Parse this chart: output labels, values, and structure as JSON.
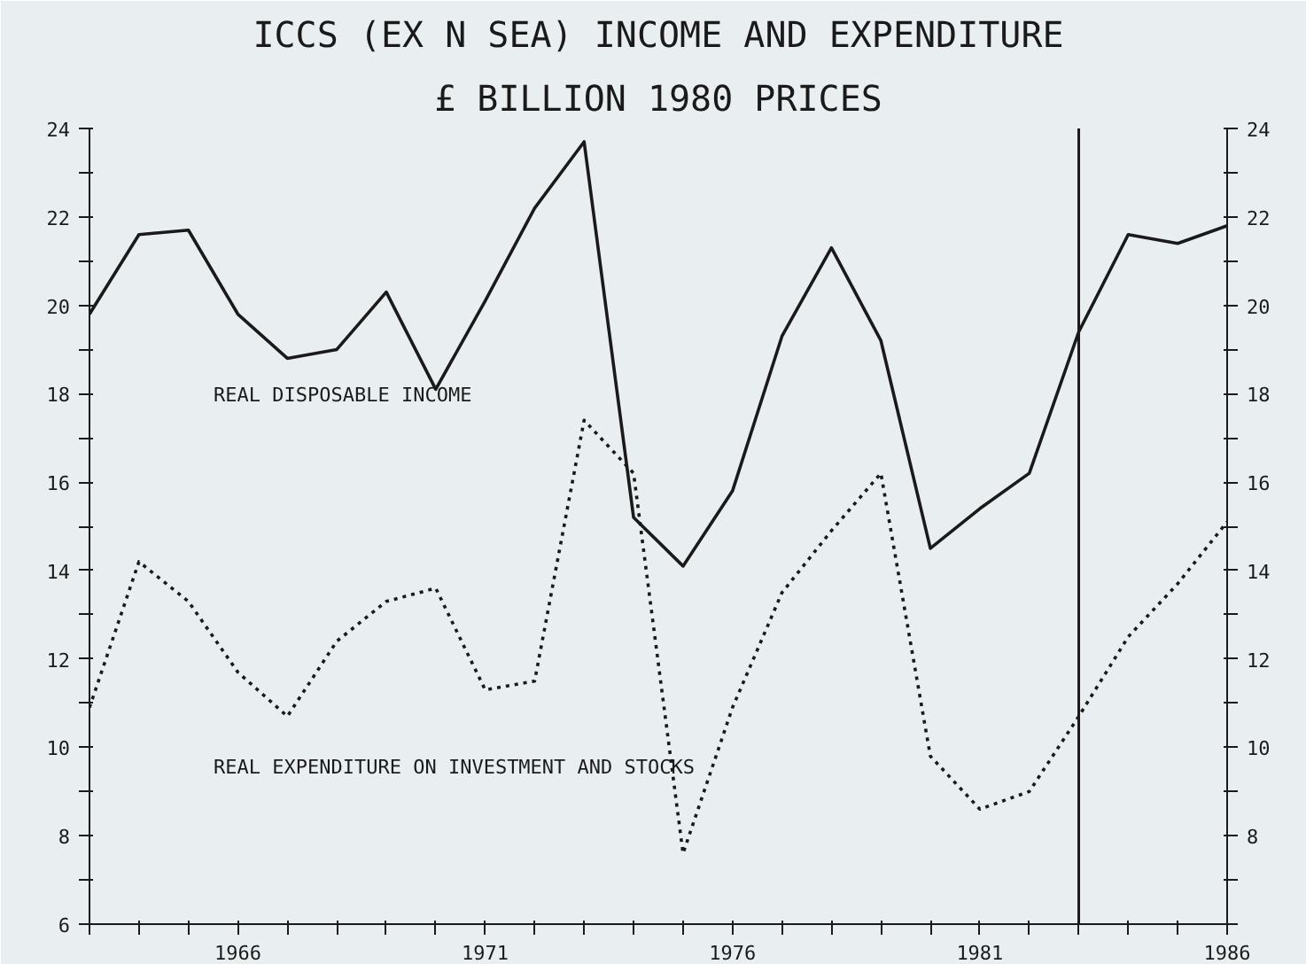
{
  "chart_data": {
    "type": "line",
    "title": "ICCS (EX N SEA) INCOME AND EXPENDITURE",
    "subtitle": "£ BILLION 1980 PRICES",
    "x": [
      1963,
      1964,
      1965,
      1966,
      1967,
      1968,
      1969,
      1970,
      1971,
      1972,
      1973,
      1974,
      1975,
      1976,
      1977,
      1978,
      1979,
      1980,
      1981,
      1982,
      1983,
      1984,
      1985,
      1986
    ],
    "series": [
      {
        "name": "REAL DISPOSABLE INCOME",
        "color": "#1a1a1a",
        "line_style": "solid",
        "values": [
          19.8,
          21.6,
          21.7,
          19.8,
          18.8,
          19.0,
          20.3,
          18.1,
          20.1,
          22.2,
          23.7,
          15.2,
          14.1,
          15.8,
          19.3,
          21.3,
          19.2,
          14.5,
          15.4,
          16.2,
          19.4,
          21.6,
          21.4,
          21.8
        ]
      },
      {
        "name": "REAL EXPENDITURE ON INVESTMENT AND STOCKS",
        "color": "#1a1a1a",
        "line_style": "dotted",
        "values": [
          10.9,
          14.2,
          13.3,
          11.7,
          10.7,
          12.4,
          13.3,
          13.6,
          11.3,
          11.5,
          17.4,
          16.2,
          7.6,
          10.9,
          13.5,
          14.9,
          16.2,
          9.8,
          8.6,
          9.0,
          10.7,
          12.5,
          13.7,
          15.1
        ]
      }
    ],
    "xlim": [
      1963,
      1986
    ],
    "xticks": [
      {
        "value": 1963,
        "label": null
      },
      {
        "value": 1964,
        "label": null
      },
      {
        "value": 1965,
        "label": null
      },
      1966,
      {
        "value": 1967,
        "label": null
      },
      {
        "value": 1968,
        "label": null
      },
      {
        "value": 1969,
        "label": null
      },
      {
        "value": 1970,
        "label": null
      },
      1971,
      {
        "value": 1972,
        "label": null
      },
      {
        "value": 1973,
        "label": null
      },
      {
        "value": 1974,
        "label": null
      },
      {
        "value": 1975,
        "label": null
      },
      1976,
      {
        "value": 1977,
        "label": null
      },
      {
        "value": 1978,
        "label": null
      },
      {
        "value": 1979,
        "label": null
      },
      {
        "value": 1980,
        "label": null
      },
      1981,
      {
        "value": 1982,
        "label": null
      },
      {
        "value": 1983,
        "label": null
      },
      {
        "value": 1984,
        "label": null
      },
      {
        "value": 1985,
        "label": null
      },
      1986
    ],
    "ylim": [
      6,
      24
    ],
    "yticks": [
      6,
      {
        "value": 7,
        "label": null
      },
      8,
      {
        "value": 9,
        "label": null
      },
      10,
      {
        "value": 11,
        "label": null
      },
      12,
      {
        "value": 13,
        "label": null
      },
      14,
      {
        "value": 15,
        "label": null
      },
      16,
      {
        "value": 17,
        "label": null
      },
      18,
      {
        "value": 19,
        "label": null
      },
      20,
      {
        "value": 21,
        "label": null
      },
      22,
      {
        "value": 23,
        "label": null
      },
      24
    ],
    "y2lim": [
      6,
      24
    ],
    "y2ticks": [
      {
        "value": 6,
        "label": null
      },
      {
        "value": 7,
        "label": null
      },
      8,
      {
        "value": 9,
        "label": null
      },
      10,
      {
        "value": 11,
        "label": null
      },
      12,
      {
        "value": 13,
        "label": null
      },
      14,
      {
        "value": 15,
        "label": null
      },
      16,
      {
        "value": 17,
        "label": null
      },
      18,
      {
        "value": 19,
        "label": null
      },
      20,
      {
        "value": 21,
        "label": null
      },
      22,
      {
        "value": 23,
        "label": null
      },
      24
    ],
    "ref_lines": [
      {
        "axis": "x",
        "value": 1983,
        "color": "#1a1a1a",
        "line_style": "solid"
      }
    ],
    "grid": false,
    "marker": "none"
  }
}
